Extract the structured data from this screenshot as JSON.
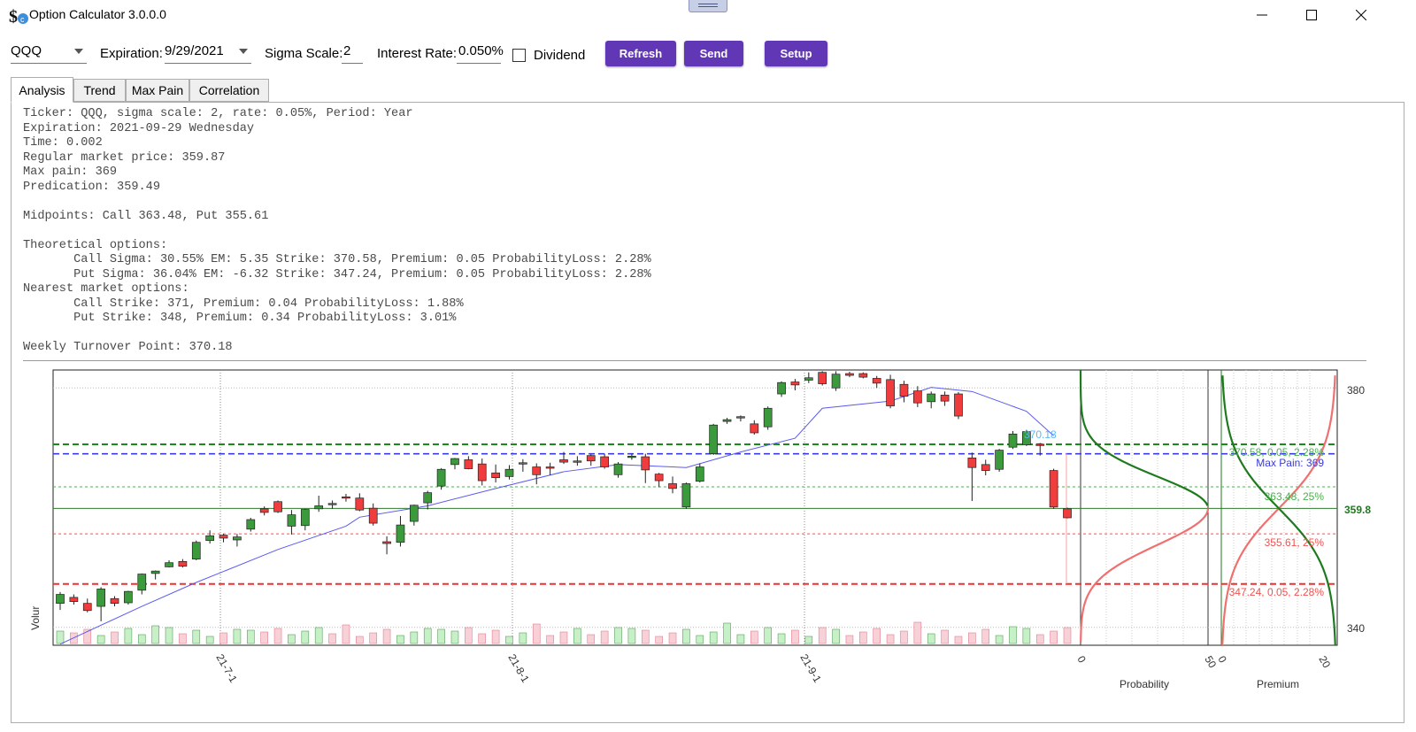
{
  "window": {
    "title": "Option Calculator 3.0.0.0",
    "icon": "dollar-calculator-icon",
    "controls": [
      "minimize-icon",
      "maximize-icon",
      "close-icon"
    ]
  },
  "toolbar": {
    "ticker": "QQQ",
    "expiration_label": "Expiration:",
    "expiration_value": "9/29/2021",
    "sigma_label": "Sigma Scale:",
    "sigma_value": "2",
    "rate_label": "Interest Rate:",
    "rate_value": "0.050%",
    "dividend_label": "Dividend",
    "dividend_checked": false,
    "refresh_label": "Refresh",
    "send_label": "Send",
    "setup_label": "Setup",
    "button_color": "#6237b5"
  },
  "tabs": [
    {
      "label": "Analysis",
      "active": true
    },
    {
      "label": "Trend",
      "active": false
    },
    {
      "label": "Max Pain",
      "active": false
    },
    {
      "label": "Correlation",
      "active": false
    }
  ],
  "analysis": {
    "line1": "Ticker: QQQ, sigma scale: 2, rate: 0.05%, Period: Year",
    "line2": "Expiration: 2021-09-29 Wednesday",
    "line3": "Time: 0.002",
    "line4": "Regular market price: 359.87",
    "line5": "Max pain: 369",
    "line6": "Predication: 359.49",
    "line7": "Midpoints: Call 363.48, Put 355.61",
    "line8": "Theoretical options:",
    "line9": "       Call Sigma: 30.55% EM: 5.35 Strike: 370.58, Premium: 0.05 ProbabilityLoss: 2.28%",
    "line10": "       Put Sigma: 36.04% EM: -6.32 Strike: 347.24, Premium: 0.05 ProbabilityLoss: 2.28%",
    "line11": "Nearest market options:",
    "line12": "       Call Strike: 371, Premium: 0.04 ProbabilityLoss: 1.88%",
    "line13": "       Put Strike: 348, Premium: 0.34 ProbabilityLoss: 3.01%",
    "line14": "Weekly Turnover Point: 370.18"
  },
  "chart_labels": {
    "volume_axis": "Volur",
    "x_ticks": [
      "21-7-1",
      "21-8-1",
      "21-9-1"
    ],
    "y_ticks": [
      "380",
      "340"
    ],
    "price_tag": "359.8",
    "turnover_tag": "370.18",
    "call_strike_tag": "370.58, 0.05, 2.28%",
    "max_pain_tag": "Max Pain: 369",
    "call_mid_tag": "363.48, 25%",
    "put_mid_tag": "355.61, 25%",
    "put_strike_tag": "347.24, 0.05, 2.28%",
    "prob_axis": "Probability",
    "prob_ticks": [
      "0",
      "50"
    ],
    "premium_axis": "Premium",
    "premium_ticks": [
      "0",
      "20"
    ]
  },
  "chart_data": {
    "type": "candlestick",
    "ylim": [
      337,
      383
    ],
    "levels": {
      "call_strike": 370.58,
      "max_pain": 369,
      "call_midpoint": 363.48,
      "price": 359.87,
      "put_midpoint": 355.61,
      "put_strike": 347.24
    },
    "colors": {
      "up": "#3b9a3b",
      "down": "#f03c3c",
      "ma": "#5a5af0",
      "call_strike": "#1a8a1a",
      "max_pain": "#3a3ae6",
      "call_mid": "#4caf50",
      "put_mid": "#ef5350",
      "put_strike": "#f03030",
      "prob_curve": "#1f7a1f",
      "premium_curve": "#f07070"
    },
    "ohlc": [
      [
        344.0,
        345.9,
        342.9,
        345.5
      ],
      [
        345.0,
        345.5,
        343.8,
        344.3
      ],
      [
        344.0,
        344.8,
        342.5,
        342.8
      ],
      [
        343.5,
        346.7,
        341.0,
        346.4
      ],
      [
        344.8,
        345.2,
        343.5,
        344.0
      ],
      [
        344.1,
        346.1,
        343.8,
        346.0
      ],
      [
        346.2,
        349.0,
        345.5,
        348.9
      ],
      [
        349.0,
        349.5,
        348.0,
        349.4
      ],
      [
        350.1,
        351.2,
        350.0,
        350.8
      ],
      [
        351.0,
        351.4,
        350.0,
        350.2
      ],
      [
        351.4,
        354.5,
        351.2,
        354.2
      ],
      [
        354.5,
        356.2,
        354.0,
        355.3
      ],
      [
        355.4,
        355.6,
        354.2,
        354.9
      ],
      [
        354.6,
        355.6,
        353.5,
        355.1
      ],
      [
        356.4,
        358.3,
        356.0,
        358.0
      ],
      [
        359.8,
        360.2,
        358.7,
        359.2
      ],
      [
        361.0,
        361.2,
        359.1,
        359.3
      ],
      [
        356.9,
        359.6,
        355.5,
        358.8
      ],
      [
        357.0,
        359.8,
        356.2,
        359.7
      ],
      [
        359.8,
        362.0,
        359.3,
        360.3
      ],
      [
        360.7,
        361.2,
        359.8,
        360.5
      ],
      [
        361.8,
        362.3,
        361.0,
        361.6
      ],
      [
        361.6,
        362.4,
        359.4,
        359.6
      ],
      [
        359.9,
        360.7,
        357.0,
        357.4
      ],
      [
        354.3,
        355.2,
        352.2,
        354.0
      ],
      [
        354.2,
        358.6,
        353.5,
        357.1
      ],
      [
        357.7,
        360.5,
        357.0,
        360.4
      ],
      [
        360.8,
        362.8,
        359.7,
        362.5
      ],
      [
        363.6,
        366.6,
        363.0,
        366.4
      ],
      [
        367.2,
        368.3,
        366.4,
        368.2
      ],
      [
        368.0,
        368.6,
        366.4,
        366.5
      ],
      [
        367.3,
        368.2,
        363.7,
        364.5
      ],
      [
        365.8,
        367.2,
        364.2,
        365.0
      ],
      [
        365.2,
        367.1,
        364.7,
        366.4
      ],
      [
        367.3,
        368.1,
        366.0,
        367.5
      ],
      [
        366.8,
        367.4,
        363.9,
        365.5
      ],
      [
        366.8,
        367.5,
        365.4,
        366.7
      ],
      [
        368.0,
        369.3,
        367.3,
        367.6
      ],
      [
        367.6,
        368.6,
        367.0,
        367.8
      ],
      [
        368.7,
        368.9,
        367.0,
        367.8
      ],
      [
        368.5,
        369.0,
        366.5,
        366.8
      ],
      [
        365.5,
        367.6,
        365.0,
        367.3
      ],
      [
        368.5,
        369.0,
        368.0,
        368.6
      ],
      [
        368.5,
        369.0,
        364.1,
        366.3
      ],
      [
        365.6,
        365.8,
        363.4,
        364.5
      ],
      [
        364.0,
        365.2,
        362.4,
        363.2
      ],
      [
        360.1,
        364.2,
        359.8,
        364.0
      ],
      [
        364.4,
        367.4,
        364.2,
        366.8
      ],
      [
        369.0,
        374.0,
        368.8,
        373.8
      ],
      [
        374.4,
        375.0,
        374.0,
        374.7
      ],
      [
        375.0,
        375.4,
        374.4,
        375.2
      ],
      [
        374.0,
        374.6,
        372.2,
        372.5
      ],
      [
        373.5,
        376.9,
        373.0,
        376.6
      ],
      [
        379.0,
        381.1,
        378.5,
        380.9
      ],
      [
        381.0,
        381.5,
        379.6,
        380.5
      ],
      [
        381.3,
        382.6,
        380.8,
        381.7
      ],
      [
        382.6,
        382.8,
        380.4,
        380.7
      ],
      [
        380.0,
        382.8,
        379.5,
        382.3
      ],
      [
        382.4,
        382.7,
        381.8,
        382.1
      ],
      [
        382.4,
        382.6,
        381.6,
        381.8
      ],
      [
        381.6,
        382.0,
        380.0,
        380.8
      ],
      [
        381.4,
        382.2,
        376.6,
        377.0
      ],
      [
        380.6,
        381.2,
        377.6,
        378.6
      ],
      [
        379.5,
        380.3,
        376.8,
        377.5
      ],
      [
        377.7,
        379.4,
        376.6,
        379.0
      ],
      [
        378.8,
        379.4,
        377.0,
        377.8
      ],
      [
        379.0,
        379.3,
        374.8,
        375.3
      ],
      [
        368.3,
        369.2,
        361.1,
        366.7
      ],
      [
        367.2,
        368.0,
        365.4,
        366.2
      ],
      [
        366.4,
        369.8,
        366.0,
        369.6
      ],
      [
        370.1,
        372.8,
        369.8,
        372.3
      ],
      [
        370.5,
        373.0,
        370.3,
        372.7
      ],
      [
        370.6,
        370.8,
        368.7,
        370.4
      ],
      [
        366.2,
        366.5,
        359.8,
        360.1
      ],
      [
        359.8,
        360.0,
        358.2,
        358.3
      ]
    ],
    "moving_average": [
      [
        0,
        337.2
      ],
      [
        6,
        343.5
      ],
      [
        10,
        347.5
      ],
      [
        16,
        353.0
      ],
      [
        21,
        356.9
      ],
      [
        22,
        358.4
      ],
      [
        27,
        360.3
      ],
      [
        32,
        363.2
      ],
      [
        37,
        366.0
      ],
      [
        41,
        367.2
      ],
      [
        46,
        366.7
      ],
      [
        50,
        369.3
      ],
      [
        54,
        371.6
      ],
      [
        56,
        376.6
      ],
      [
        61,
        377.8
      ],
      [
        64,
        380.1
      ],
      [
        67,
        379.4
      ],
      [
        71,
        376.1
      ],
      [
        73,
        372.0
      ]
    ]
  }
}
